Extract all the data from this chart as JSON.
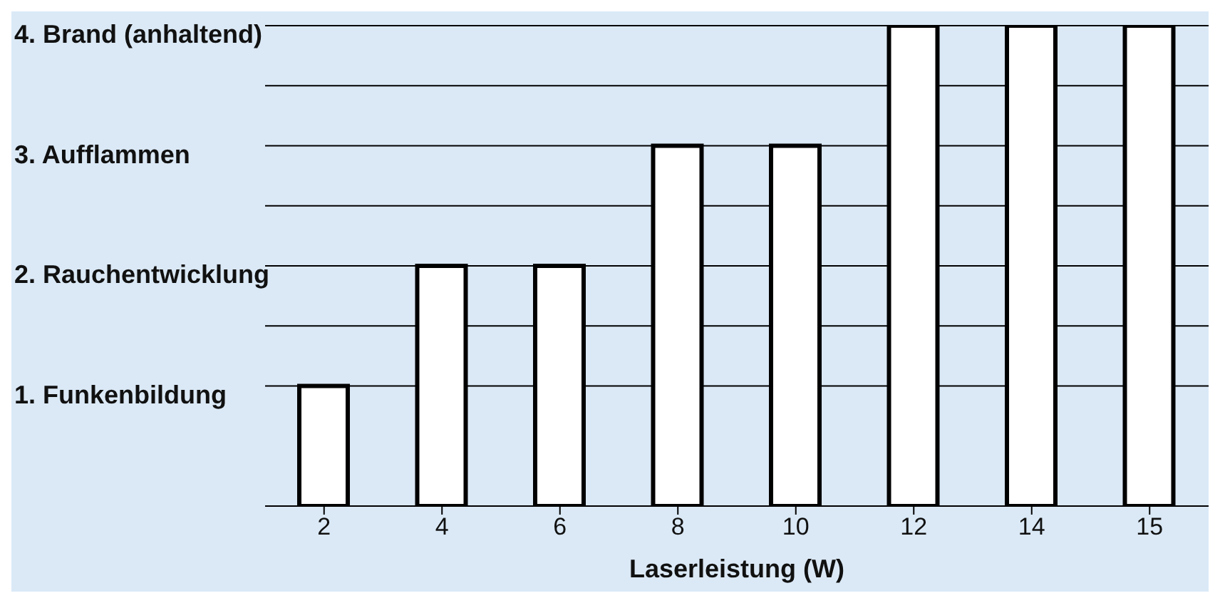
{
  "chart_data": {
    "type": "bar",
    "categories": [
      "2",
      "4",
      "6",
      "8",
      "10",
      "12",
      "14",
      "15"
    ],
    "values": [
      1,
      2,
      2,
      3,
      3,
      4,
      4,
      4
    ],
    "color": "#ffffff",
    "xlabel": "Laserleistung (W)",
    "ylim": [
      0,
      4
    ],
    "yticks": [
      {
        "value": 1,
        "label": "1. Funkenbildung"
      },
      {
        "value": 1.5,
        "label": null
      },
      {
        "value": 2,
        "label": "2. Rauchentwicklung"
      },
      {
        "value": 2.5,
        "label": null
      },
      {
        "value": 3,
        "label": "3. Aufflammen"
      },
      {
        "value": 3.5,
        "label": null
      },
      {
        "value": 4,
        "label": "4. Brand (anhaltend)"
      }
    ],
    "grid": "y"
  }
}
